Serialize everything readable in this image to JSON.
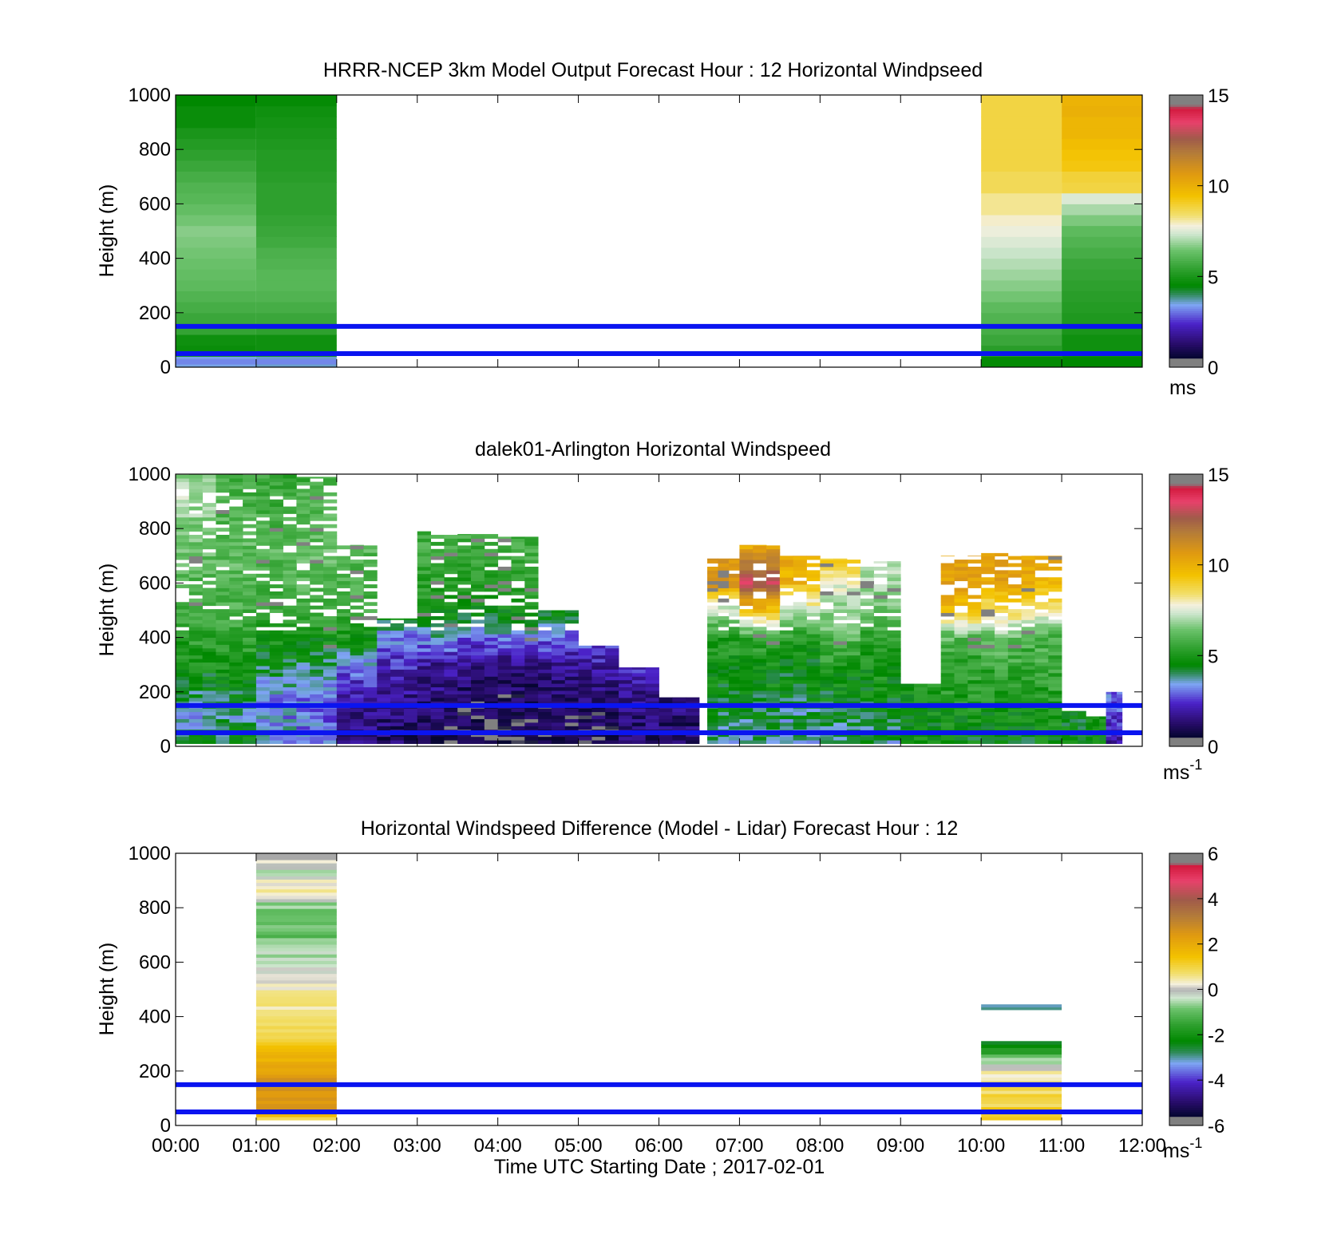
{
  "chart_data": [
    {
      "type": "heatmap",
      "title": "HRRR-NCEP 3km Model Output   Forecast Hour : 12 Horizontal Windpseed",
      "ylabel": "Height (m)",
      "xlabel": "",
      "x_ticks": [
        "",
        "",
        "",
        "",
        "",
        "",
        "",
        "",
        "",
        "",
        "",
        "",
        ""
      ],
      "y_ticks": [
        "0",
        "200",
        "400",
        "600",
        "800",
        "1000"
      ],
      "xlim_hours": [
        0,
        12
      ],
      "ylim": [
        0,
        1000
      ],
      "colorbar": {
        "min": 0,
        "max": 15,
        "ticks": [
          "0",
          "5",
          "10",
          "15"
        ],
        "unit": "ms",
        "unit_sup": ""
      },
      "reference_lines_m": [
        50,
        150
      ],
      "columns": [
        {
          "t0": 0,
          "t1": 1,
          "values": [
            3.5,
            4.7,
            4.8,
            5.5,
            5.6,
            5.8,
            6.0,
            6.2,
            6.3,
            6.4,
            6.5,
            6.6,
            6.7,
            6.5,
            6.3,
            6.1,
            6.0,
            5.8,
            5.6,
            5.4,
            5.2,
            5.0,
            4.7,
            4.7,
            4.5
          ]
        },
        {
          "t0": 1,
          "t1": 2,
          "values": [
            3.6,
            4.8,
            4.8,
            5.4,
            5.6,
            5.8,
            6.0,
            6.1,
            6.1,
            6.0,
            5.9,
            5.7,
            5.6,
            5.5,
            5.4,
            5.4,
            5.4,
            5.3,
            5.2,
            5.2,
            5.1,
            5.0,
            4.9,
            4.8,
            4.6
          ]
        },
        {
          "t0": 10,
          "t1": 11,
          "values": [
            4.6,
            5.3,
            5.6,
            5.8,
            6.0,
            6.2,
            6.5,
            6.7,
            6.9,
            7.1,
            7.3,
            7.5,
            7.7,
            7.9,
            8.2,
            8.2,
            8.6,
            8.6,
            8.8,
            8.8,
            8.8,
            8.8,
            8.8,
            8.8,
            8.8
          ]
        },
        {
          "t0": 11,
          "t1": 12,
          "values": [
            4.5,
            4.8,
            4.8,
            5.0,
            5.1,
            5.2,
            5.3,
            5.4,
            5.5,
            5.6,
            5.8,
            6.0,
            6.2,
            6.6,
            7.0,
            7.5,
            8.8,
            8.9,
            9.3,
            9.4,
            9.6,
            9.8,
            9.8,
            10.0,
            9.9
          ]
        }
      ]
    },
    {
      "type": "heatmap",
      "title": "dalek01-Arlington  Horizontal Windspeed",
      "ylabel": "Height (m)",
      "xlabel": "",
      "x_ticks": [
        "",
        "",
        "",
        "",
        "",
        "",
        "",
        "",
        "",
        "",
        "",
        "",
        ""
      ],
      "y_ticks": [
        "0",
        "200",
        "400",
        "600",
        "800",
        "1000"
      ],
      "xlim_hours": [
        0,
        12
      ],
      "ylim": [
        0,
        1000
      ],
      "colorbar": {
        "min": 0,
        "max": 15,
        "ticks": [
          "0",
          "5",
          "10",
          "15"
        ],
        "unit": "ms",
        "unit_sup": "-1"
      },
      "reference_lines_m": [
        50,
        150
      ],
      "segments": [
        {
          "t0": 0.0,
          "t1": 0.5,
          "top": 1000,
          "profile": [
            4.5,
            3.6,
            4.2,
            4.9,
            5.4,
            5.7,
            5.9,
            6.2,
            6.5,
            7.0,
            6.8
          ]
        },
        {
          "t0": 0.5,
          "t1": 1.0,
          "top": 1000,
          "profile": [
            4.6,
            3.8,
            4.4,
            5.0,
            5.4,
            5.8,
            6.0,
            6.1,
            6.0,
            5.8,
            5.6
          ]
        },
        {
          "t0": 1.0,
          "t1": 1.5,
          "top": 1000,
          "profile": [
            3.6,
            3.2,
            3.4,
            4.4,
            5.0,
            5.5,
            5.8,
            6.0,
            5.8,
            5.6,
            5.4
          ]
        },
        {
          "t0": 1.5,
          "t1": 2.0,
          "top": 990,
          "profile": [
            3.4,
            3.0,
            3.1,
            4.1,
            5.0,
            5.6,
            6.0,
            6.2,
            6.0,
            5.8,
            5.6
          ]
        },
        {
          "t0": 2.0,
          "t1": 2.5,
          "top": 740,
          "profile": [
            1.3,
            1.6,
            2.1,
            3.3,
            5.0,
            5.6,
            5.8,
            6.0,
            6.0,
            5.9,
            5.8
          ]
        },
        {
          "t0": 2.5,
          "t1": 3.0,
          "top": 470,
          "profile": [
            1.2,
            1.4,
            1.8,
            2.4,
            3.2,
            5.0,
            5.5,
            5.8,
            5.8,
            5.8,
            5.8
          ]
        },
        {
          "t0": 3.0,
          "t1": 3.5,
          "top": 790,
          "profile": [
            0.9,
            1.2,
            1.5,
            1.9,
            3.6,
            4.8,
            5.3,
            5.6,
            5.7,
            5.7,
            5.7
          ]
        },
        {
          "t0": 3.5,
          "t1": 4.0,
          "top": 780,
          "profile": [
            0.7,
            0.9,
            1.2,
            1.6,
            3.2,
            4.6,
            5.2,
            5.5,
            5.6,
            5.6,
            5.6
          ]
        },
        {
          "t0": 4.0,
          "t1": 4.5,
          "top": 770,
          "profile": [
            0.6,
            0.8,
            1.1,
            1.6,
            3.4,
            4.8,
            5.3,
            5.6,
            5.6,
            5.6,
            5.6
          ]
        },
        {
          "t0": 4.5,
          "t1": 5.0,
          "top": 500,
          "profile": [
            0.8,
            1.0,
            1.3,
            1.8,
            3.2,
            4.6,
            5.0,
            5.2,
            5.2,
            5.2,
            5.2
          ]
        },
        {
          "t0": 5.0,
          "t1": 5.5,
          "top": 370,
          "profile": [
            0.9,
            1.1,
            1.5,
            2.0,
            3.0,
            4.0,
            4.6,
            4.6,
            4.6,
            4.6,
            4.6
          ]
        },
        {
          "t0": 5.5,
          "t1": 6.0,
          "top": 290,
          "profile": [
            1.2,
            1.4,
            1.8,
            2.4,
            3.0,
            3.6,
            3.6,
            3.6,
            3.6,
            3.6,
            3.6
          ]
        },
        {
          "t0": 6.0,
          "t1": 6.5,
          "top": 180,
          "profile": [
            1.0,
            1.3,
            1.6,
            1.6,
            1.6,
            1.6,
            1.6,
            1.6,
            1.6,
            1.6,
            1.6
          ]
        },
        {
          "t0": 6.6,
          "t1": 7.0,
          "top": 690,
          "profile": [
            3.8,
            4.2,
            4.6,
            4.9,
            5.2,
            7.2,
            11.0,
            10.5,
            7.6,
            7.6,
            7.6
          ]
        },
        {
          "t0": 7.0,
          "t1": 7.5,
          "top": 740,
          "profile": [
            3.6,
            4.2,
            4.6,
            4.8,
            5.6,
            9.6,
            13.0,
            10.8,
            8.4,
            7.7,
            7.7
          ]
        },
        {
          "t0": 7.5,
          "t1": 8.0,
          "top": 700,
          "profile": [
            3.4,
            4.0,
            4.4,
            4.6,
            5.4,
            7.4,
            9.8,
            10.2,
            8.2,
            7.7,
            7.7
          ]
        },
        {
          "t0": 8.0,
          "t1": 8.5,
          "top": 690,
          "profile": [
            3.6,
            4.3,
            4.6,
            5.2,
            6.2,
            6.8,
            7.6,
            9.4,
            7.6,
            7.6,
            7.6
          ]
        },
        {
          "t0": 8.5,
          "t1": 9.0,
          "top": 680,
          "profile": [
            3.9,
            4.4,
            4.7,
            5.1,
            5.4,
            6.4,
            6.8,
            7.4,
            7.6,
            7.6,
            7.6
          ]
        },
        {
          "t0": 9.0,
          "t1": 9.5,
          "top": 230,
          "profile": [
            4.6,
            4.8,
            5.0,
            5.2,
            5.2,
            5.2,
            5.2,
            5.2,
            5.2,
            5.2,
            5.2
          ]
        },
        {
          "t0": 9.5,
          "t1": 10.0,
          "top": 700,
          "profile": [
            4.6,
            4.8,
            5.2,
            5.4,
            6.2,
            9.6,
            10.4,
            10.2,
            9.8,
            9.6,
            9.6
          ]
        },
        {
          "t0": 10.0,
          "t1": 10.5,
          "top": 710,
          "profile": [
            4.6,
            4.8,
            5.2,
            5.6,
            6.6,
            8.4,
            10.2,
            10.4,
            9.4,
            8.4,
            8.4
          ]
        },
        {
          "t0": 10.5,
          "t1": 11.0,
          "top": 700,
          "profile": [
            4.6,
            4.9,
            5.3,
            5.6,
            6.0,
            8.2,
            9.8,
            10.4,
            9.4,
            8.4,
            8.4
          ]
        },
        {
          "t0": 11.0,
          "t1": 11.3,
          "top": 130,
          "profile": [
            4.6,
            4.6,
            4.6,
            4.6,
            4.6,
            4.6,
            4.6,
            4.6,
            4.6,
            4.6,
            4.6
          ]
        },
        {
          "t0": 11.3,
          "t1": 11.55,
          "top": 110,
          "profile": [
            4.8,
            4.8,
            4.8,
            4.8,
            4.8,
            4.8,
            4.8,
            4.8,
            4.8,
            4.8,
            4.8
          ]
        },
        {
          "t0": 11.55,
          "t1": 11.75,
          "top": 200,
          "profile": [
            2.0,
            2.6,
            3.0,
            3.2,
            3.2,
            3.2,
            3.2,
            3.2,
            3.2,
            3.2,
            3.2
          ]
        }
      ]
    },
    {
      "type": "heatmap",
      "title": "Horizontal Windspeed Difference (Model - Lidar) Forecast Hour : 12",
      "ylabel": "Height (m)",
      "xlabel": "Time UTC  Starting Date ; 2017-02-01",
      "x_ticks": [
        "00:00",
        "01:00",
        "02:00",
        "03:00",
        "04:00",
        "05:00",
        "06:00",
        "07:00",
        "08:00",
        "09:00",
        "10:00",
        "11:00",
        "12:00"
      ],
      "y_ticks": [
        "0",
        "200",
        "400",
        "600",
        "800",
        "1000"
      ],
      "xlim_hours": [
        0,
        12
      ],
      "ylim": [
        0,
        1000
      ],
      "colorbar": {
        "min": -6,
        "max": 6,
        "ticks": [
          "-6",
          "-4",
          "-2",
          "0",
          "2",
          "4",
          "6"
        ],
        "unit": "ms",
        "unit_sup": "-1"
      },
      "reference_lines_m": [
        50,
        150
      ],
      "columns": [
        {
          "t0": 1,
          "t1": 2,
          "y0": 20,
          "y1": 1000,
          "profile": [
            1.2,
            2.4,
            2.6,
            2.5,
            2.4,
            2.2,
            1.8,
            1.2,
            1.0,
            0.8,
            0.6,
            0.5,
            0.4,
            0.2,
            0.0,
            -0.3,
            -0.5,
            -0.8,
            -1.0,
            -0.8,
            -0.9,
            -0.6,
            0.6,
            0.3,
            -0.4,
            0.0
          ]
        },
        {
          "t0": 10,
          "t1": 11,
          "y0": 20,
          "y1": 310,
          "profile": [
            1.4,
            1.2,
            1.0,
            1.0,
            0.9,
            0.8,
            0.6,
            0.4,
            0.2,
            -0.3,
            -0.8,
            -1.6,
            -2.4
          ]
        },
        {
          "t0": 10,
          "t1": 11,
          "y0": 425,
          "y1": 445,
          "profile": [
            -3.0
          ]
        }
      ]
    }
  ]
}
